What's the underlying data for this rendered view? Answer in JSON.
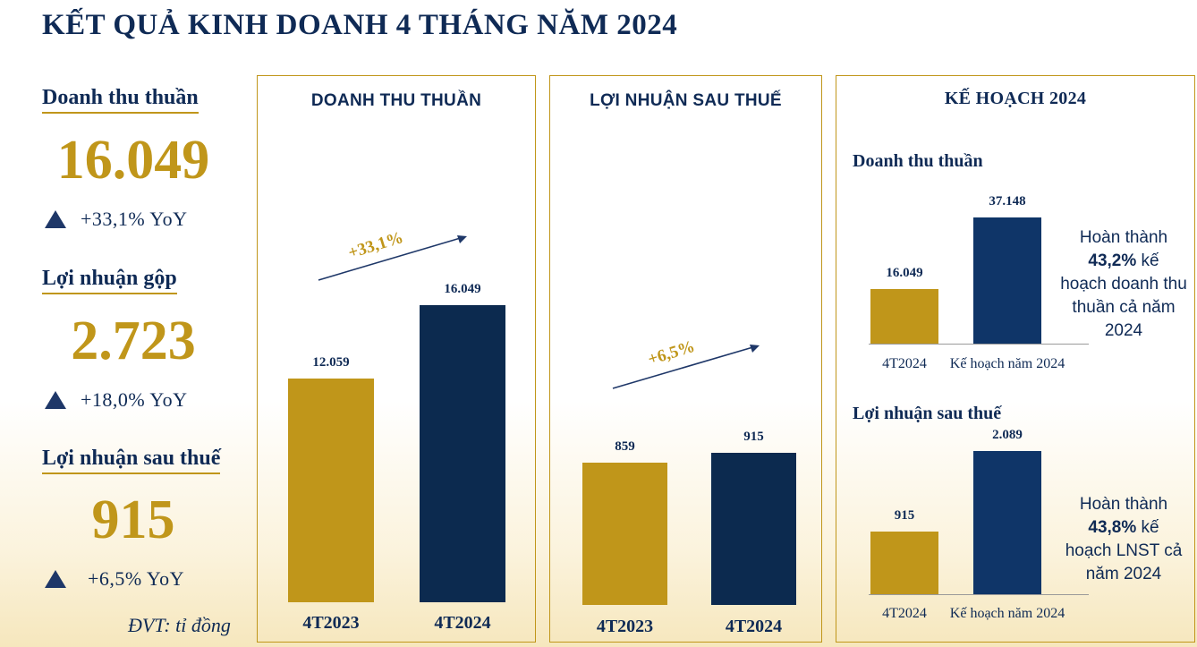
{
  "title": "KẾT QUẢ KINH DOANH 4 THÁNG NĂM 2024",
  "kpis": [
    {
      "label": "Doanh thu thuần",
      "value": "16.049",
      "yoy": "+33,1% YoY"
    },
    {
      "label": "Lợi nhuận gộp",
      "value": "2.723",
      "yoy": "+18,0% YoY"
    },
    {
      "label": "Lợi nhuận sau thuế",
      "value": "915",
      "yoy": "+6,5% YoY"
    }
  ],
  "unit_note": "ĐVT: tỉ đồng",
  "colors": {
    "gold": "#c0961a",
    "navy": "#0c2a4f",
    "navy_light": "#0f3568",
    "text": "#0f2a55"
  },
  "chart_data": [
    {
      "type": "bar",
      "title": "DOANH THU THUẦN",
      "categories": [
        "4T2023",
        "4T2024"
      ],
      "values": [
        12059,
        16049
      ],
      "value_labels": [
        "12.059",
        "16.049"
      ],
      "growth_label": "+33,1%",
      "ylim": [
        0,
        17000
      ]
    },
    {
      "type": "bar",
      "title": "LỢI NHUẬN SAU THUẾ",
      "categories": [
        "4T2023",
        "4T2024"
      ],
      "values": [
        859,
        915
      ],
      "value_labels": [
        "859",
        "915"
      ],
      "growth_label": "+6,5%",
      "ylim": [
        0,
        1900
      ]
    },
    {
      "type": "bar",
      "title": "Doanh thu thuần",
      "group_title": "KẾ HOẠCH 2024",
      "categories": [
        "4T2024",
        "Kế hoạch năm 2024"
      ],
      "values": [
        16049,
        37148
      ],
      "value_labels": [
        "16.049",
        "37.148"
      ],
      "note_parts": [
        "Hoàn thành",
        "43,2%",
        "kế hoạch doanh thu thuần cả năm 2024"
      ],
      "ylim": [
        0,
        39000
      ]
    },
    {
      "type": "bar",
      "title": "Lợi nhuận sau thuế",
      "categories": [
        "4T2024",
        "Kế hoạch năm 2024"
      ],
      "values": [
        915,
        2089
      ],
      "value_labels": [
        "915",
        "2.089"
      ],
      "note_parts": [
        "Hoàn thành",
        "43,8%",
        "kế hoạch LNST cả năm 2024"
      ],
      "ylim": [
        0,
        2200
      ]
    }
  ]
}
